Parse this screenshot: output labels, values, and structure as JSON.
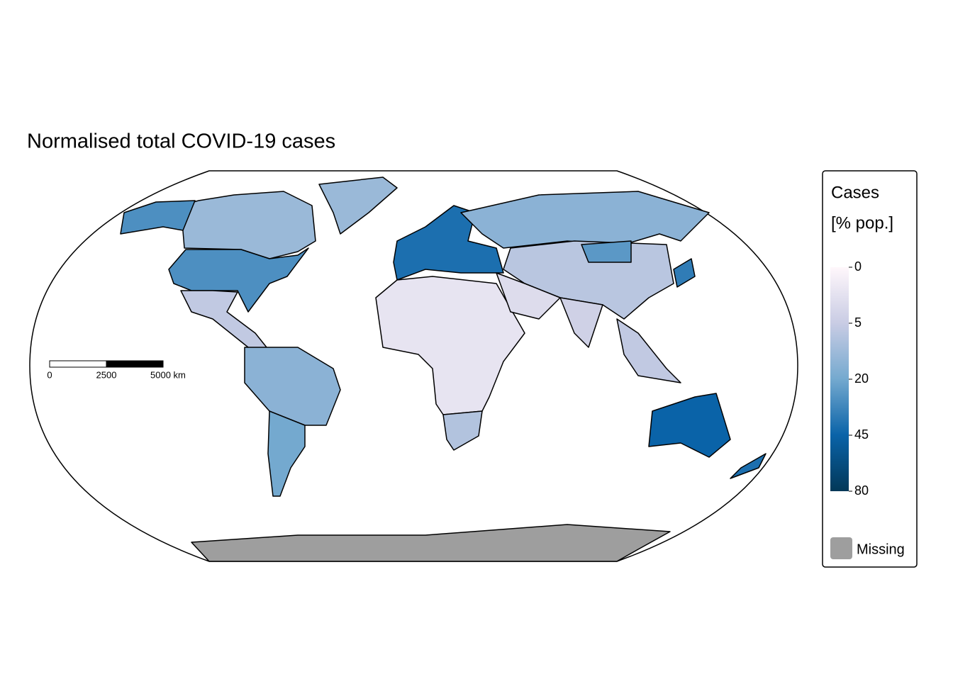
{
  "chart_data": {
    "type": "choropleth",
    "title": "Normalised total COVID-19 cases",
    "legend_title": [
      "Cases",
      "[% pop.]"
    ],
    "values": [
      12,
      28,
      12,
      6,
      15,
      20,
      40,
      1,
      8,
      15,
      7,
      4,
      2,
      6,
      45,
      40,
      35,
      null,
      25
    ],
    "scale": {
      "transform": "sqrt",
      "ticks": [
        0,
        5,
        20,
        45,
        80
      ],
      "colors": [
        "#fff7fb",
        "#c9cce4",
        "#74a9cf",
        "#0a63a8",
        "#023858"
      ]
    },
    "missing_label": "Missing",
    "missing_color": "#9e9e9e",
    "scale_bar": {
      "labels": [
        "0",
        "2500",
        "5000 km"
      ]
    }
  }
}
